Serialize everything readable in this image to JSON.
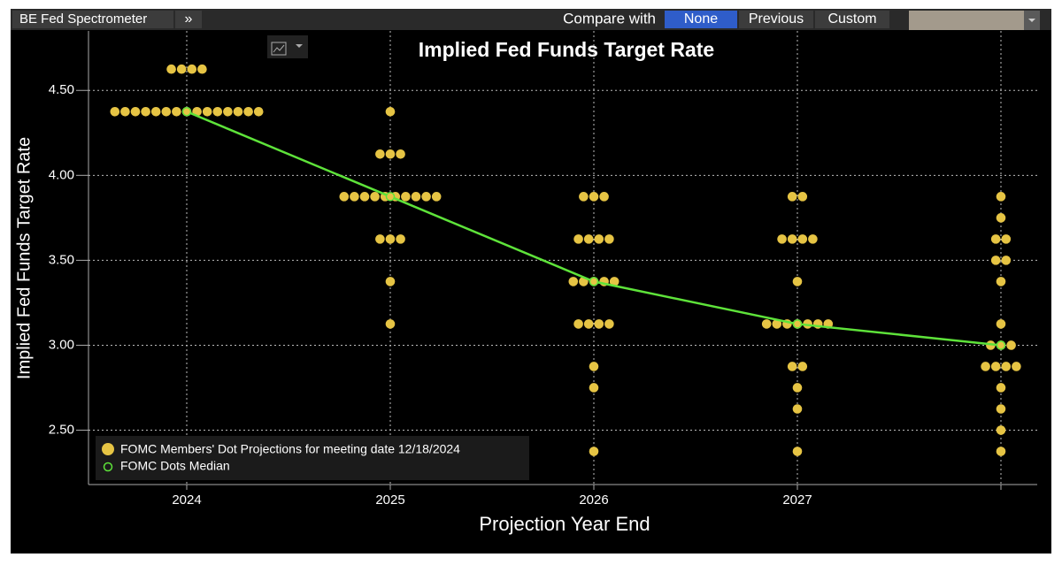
{
  "toolbar": {
    "app": "BE Fed Spectrometer",
    "more": "»",
    "compare_label": "Compare with",
    "options": [
      "None",
      "Previous",
      "Custom"
    ]
  },
  "chart_data": {
    "type": "dot-plot",
    "title": "Implied Fed Funds Target Rate",
    "y_label": "Implied Fed Funds Target Rate",
    "x_label": "Projection Year End",
    "categories": [
      "2024",
      "2025",
      "2026",
      "2027",
      null
    ],
    "ylim": [
      2.18,
      4.85
    ],
    "yticks": [
      {
        "value": 2.5,
        "label": "2.50"
      },
      {
        "value": 3.0,
        "label": "3.00"
      },
      {
        "value": 3.5,
        "label": "3.50"
      },
      {
        "value": 4.0,
        "label": "4.00"
      },
      {
        "value": 4.5,
        "label": "4.50"
      }
    ],
    "grid": true,
    "legend": "lower left",
    "series": [
      {
        "name": "FOMC Members' Dot Projections for meeting date 12/18/2024",
        "color": "#e6c444",
        "values": [
          [
            4.625,
            4.625,
            4.625,
            4.625,
            4.375,
            4.375,
            4.375,
            4.375,
            4.375,
            4.375,
            4.375,
            4.375,
            4.375,
            4.375,
            4.375,
            4.375,
            4.375,
            4.375,
            4.375
          ],
          [
            4.375,
            4.125,
            4.125,
            4.125,
            3.875,
            3.875,
            3.875,
            3.875,
            3.875,
            3.875,
            3.875,
            3.875,
            3.875,
            3.875,
            3.625,
            3.625,
            3.625,
            3.375,
            3.125
          ],
          [
            3.875,
            3.875,
            3.875,
            3.625,
            3.625,
            3.625,
            3.625,
            3.375,
            3.375,
            3.375,
            3.375,
            3.375,
            3.125,
            3.125,
            3.125,
            3.125,
            2.875,
            2.75,
            2.375
          ],
          [
            3.875,
            3.875,
            3.625,
            3.625,
            3.625,
            3.625,
            3.375,
            3.125,
            3.125,
            3.125,
            3.125,
            3.125,
            3.125,
            3.125,
            2.875,
            2.875,
            2.75,
            2.625,
            2.375
          ],
          [
            3.875,
            3.75,
            3.625,
            3.625,
            3.5,
            3.5,
            3.375,
            3.125,
            3.0,
            3.0,
            3.0,
            2.875,
            2.875,
            2.875,
            2.875,
            2.75,
            2.625,
            2.5,
            2.375
          ]
        ]
      },
      {
        "name": "FOMC Dots Median",
        "color": "#5ee33a",
        "values": [
          4.375,
          3.875,
          3.375,
          3.125,
          3.0
        ]
      }
    ]
  }
}
